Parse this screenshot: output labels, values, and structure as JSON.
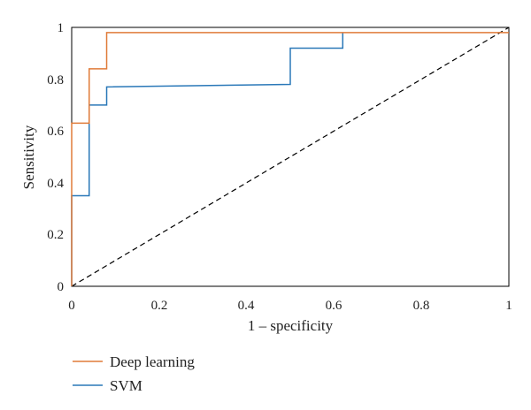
{
  "chart_data": {
    "type": "line",
    "xlabel": "1 – specificity",
    "ylabel": "Sensitivity",
    "xlim": [
      0,
      1
    ],
    "ylim": [
      0,
      1
    ],
    "x_ticks": [
      "0",
      "0.2",
      "0.4",
      "0.6",
      "0.8",
      "1"
    ],
    "y_ticks": [
      "0",
      "0.2",
      "0.4",
      "0.6",
      "0.8",
      "1"
    ],
    "grid": false,
    "legend_position": "bottom-left",
    "series": [
      {
        "name": "Deep learning",
        "color": "#e07b39",
        "x": [
          0,
          0,
          0.04,
          0.04,
          0.08,
          0.08,
          1
        ],
        "y": [
          0,
          0.63,
          0.63,
          0.84,
          0.84,
          0.98,
          0.98
        ]
      },
      {
        "name": "SVM",
        "color": "#2a78b8",
        "x": [
          0,
          0,
          0.04,
          0.04,
          0.08,
          0.08,
          0.5,
          0.5,
          0.62,
          0.62
        ],
        "y": [
          0,
          0.35,
          0.35,
          0.7,
          0.7,
          0.77,
          0.78,
          0.92,
          0.92,
          0.98
        ]
      },
      {
        "name": "",
        "color": "#000000",
        "dashed": true,
        "x": [
          0,
          1
        ],
        "y": [
          0,
          1
        ]
      }
    ]
  }
}
